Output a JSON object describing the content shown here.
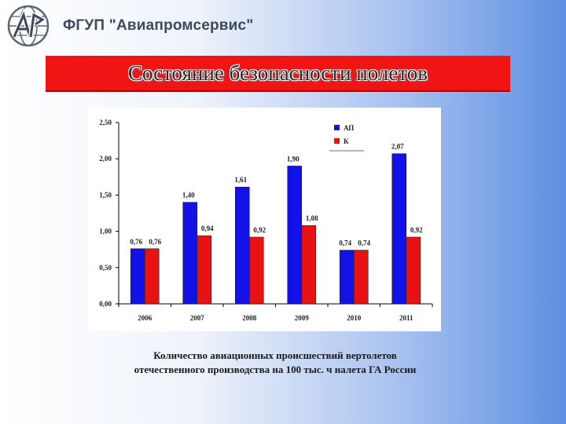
{
  "header": {
    "org_name": "ФГУП \"Авиапромсервис\""
  },
  "banner": {
    "title": "Состояние безопасности полетов"
  },
  "caption": {
    "line1": "Количество авиационных происшествий вертолетов",
    "line2": "отечественного производства на 100 тыс. ч налета ГА России"
  },
  "colors": {
    "series_an": "#1212e8",
    "series_k": "#e81212",
    "banner": "#f01414"
  },
  "chart_data": {
    "type": "bar",
    "categories": [
      "2006",
      "2007",
      "2008",
      "2009",
      "2010",
      "2011"
    ],
    "series": [
      {
        "name": "АП",
        "values": [
          0.76,
          1.4,
          1.61,
          1.9,
          0.74,
          2.07
        ],
        "labels": [
          "0,76",
          "1,40",
          "1,61",
          "1,90",
          "0,74",
          "2,07"
        ]
      },
      {
        "name": "К",
        "values": [
          0.76,
          0.94,
          0.92,
          1.08,
          0.74,
          0.92
        ],
        "labels": [
          "0,76",
          "0,94",
          "0,92",
          "1,08",
          "0,74",
          "0,92"
        ]
      }
    ],
    "yticks": [
      0,
      0.5,
      1.0,
      1.5,
      2.0,
      2.5
    ],
    "ytick_labels": [
      "0,00",
      "0,50",
      "1,00",
      "1,50",
      "2,00",
      "2,50"
    ],
    "ylim": [
      0,
      2.5
    ],
    "grid": false,
    "legend_position": "top-right",
    "title": "",
    "xlabel": "",
    "ylabel": ""
  }
}
